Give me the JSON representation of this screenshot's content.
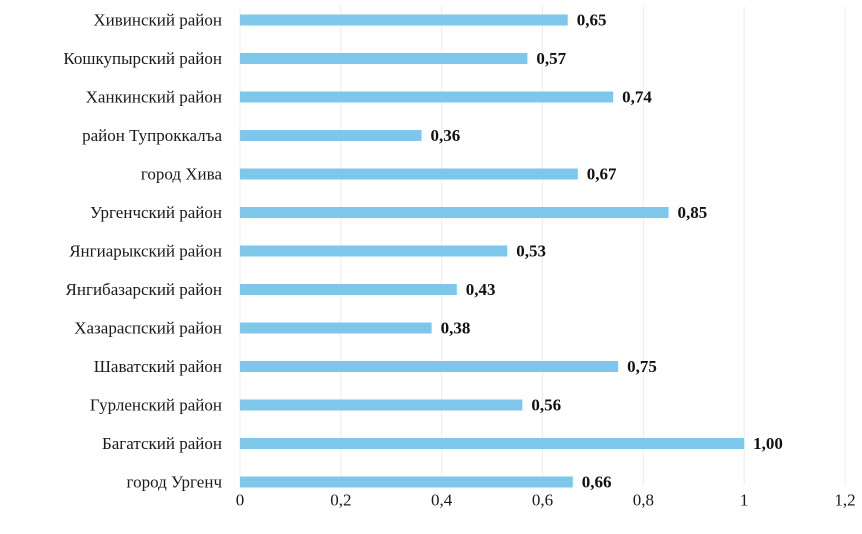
{
  "chart_data": {
    "type": "bar",
    "orientation": "horizontal",
    "categories": [
      "Хивинский район",
      "Кошкупырский район",
      "Ханкинский район",
      "район Тупроккалъа",
      "город Хива",
      "Ургенчский район",
      "Янгиарыкский район",
      "Янгибазарский район",
      "Хазараспский район",
      "Шаватский район",
      "Гурленский район",
      "Багатский район",
      "город Ургенч"
    ],
    "values": [
      0.65,
      0.57,
      0.74,
      0.36,
      0.67,
      0.85,
      0.53,
      0.43,
      0.38,
      0.75,
      0.56,
      1.0,
      0.66
    ],
    "value_labels": [
      "0,65",
      "0,57",
      "0,74",
      "0,36",
      "0,67",
      "0,85",
      "0,53",
      "0,43",
      "0,38",
      "0,75",
      "0,56",
      "1,00",
      "0,66"
    ],
    "x_ticks": [
      0,
      0.2,
      0.4,
      0.6,
      0.8,
      1,
      1.2
    ],
    "x_tick_labels": [
      "0",
      "0,2",
      "0,4",
      "0,6",
      "0,8",
      "1",
      "1,2"
    ],
    "xlim": [
      0,
      1.2
    ],
    "title": "",
    "xlabel": "",
    "ylabel": "",
    "grid": true,
    "legend": false,
    "bar_color": "#7ec7ea"
  }
}
